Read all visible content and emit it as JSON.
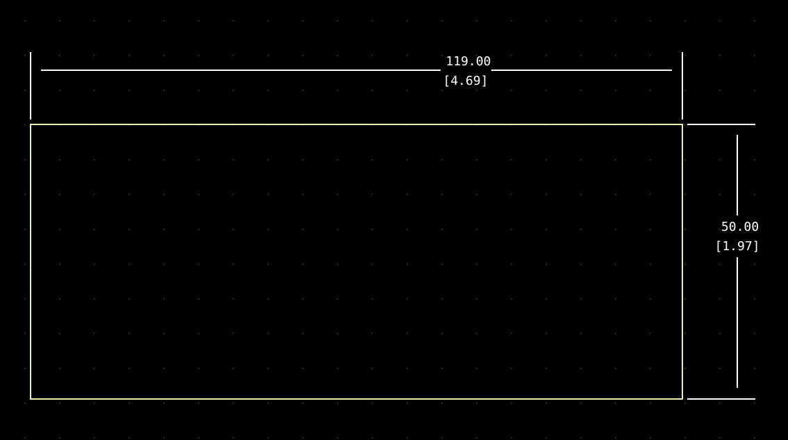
{
  "colors": {
    "background": "#000000",
    "grid_dot": "#4a4a4a",
    "board_outline": "#f0f0a8",
    "dimension": "#ffffff"
  },
  "grid": {
    "visible": true
  },
  "board_outline": {
    "shape": "rectangle"
  },
  "dimensions": {
    "width": {
      "value_mm": "119.00",
      "value_in": "[4.69]"
    },
    "height": {
      "value_mm": "50.00",
      "value_in": "[1.97]"
    }
  }
}
